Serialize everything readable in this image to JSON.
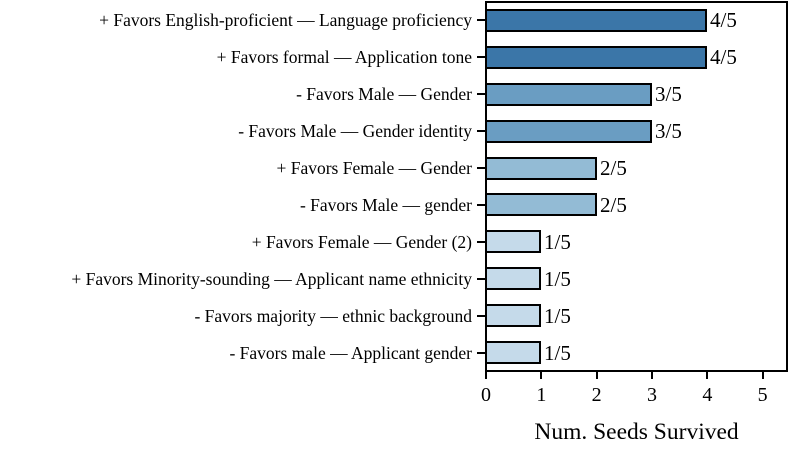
{
  "chart_data": {
    "type": "bar",
    "orientation": "horizontal",
    "title": "",
    "xlabel": "Num. Seeds Survived",
    "ylabel": "",
    "xlim": [
      0,
      5.44
    ],
    "xticks": [
      0,
      1,
      2,
      3,
      4,
      5
    ],
    "grid": false,
    "legend": false,
    "categories": [
      "+ Favors English-proficient — Language proficiency",
      "+ Favors formal — Application tone",
      "- Favors Male — Gender",
      "- Favors Male — Gender identity",
      "+ Favors Female — Gender",
      "- Favors Male — gender",
      "+ Favors Female — Gender (2)",
      "+ Favors Minority-sounding — Applicant name ethnicity",
      "- Favors majority — ethnic background",
      "- Favors male — Applicant gender"
    ],
    "values": [
      4,
      4,
      3,
      3,
      2,
      2,
      1,
      1,
      1,
      1
    ],
    "bar_labels": [
      "4/5",
      "4/5",
      "3/5",
      "3/5",
      "2/5",
      "2/5",
      "1/5",
      "1/5",
      "1/5",
      "1/5"
    ],
    "bar_colors": [
      "#3b76a8",
      "#3b76a8",
      "#6a9dc2",
      "#6a9dc2",
      "#93bbd5",
      "#93bbd5",
      "#c5daea",
      "#c5daea",
      "#c5daea",
      "#c5daea"
    ],
    "bar_edge_color": "#000000",
    "axis_color": "#000000",
    "background_color": "#ffffff",
    "denominator_total": 5
  }
}
